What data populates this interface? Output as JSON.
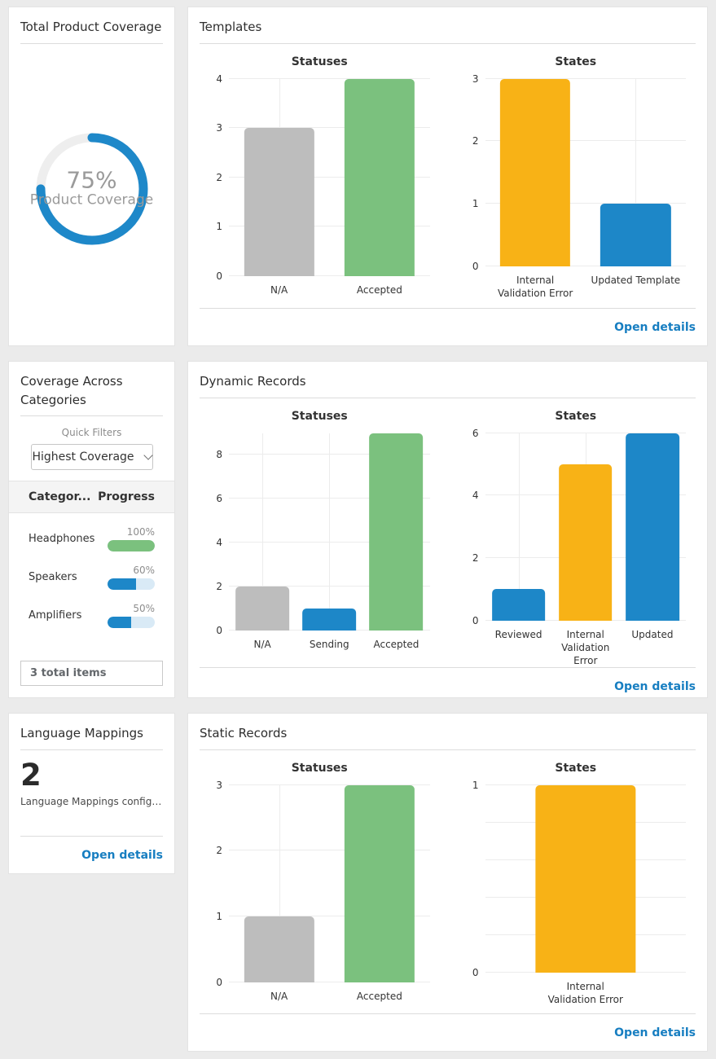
{
  "colors": {
    "accent_blue": "#1d87c8",
    "green": "#7bc17e",
    "orange": "#f8b216",
    "gray": "#bdbdbd",
    "link_blue": "#177ec1",
    "donut_track": "#eeeeee",
    "progress_track": "#d9eaf6"
  },
  "cards": {
    "total": {
      "title": "Total Product Coverage"
    },
    "templates": {
      "title": "Templates",
      "open_details": "Open details"
    },
    "categories": {
      "title": "Coverage Across Categories",
      "quick_filters_label": "Quick Filters",
      "dropdown_value": "Highest Coverage",
      "col_category": "Categor...",
      "col_progress": "Progress",
      "rows": [
        {
          "category": "Headphones",
          "percent": 100,
          "percent_label": "100%",
          "fill": "#7bc17e"
        },
        {
          "category": "Speakers",
          "percent": 60,
          "percent_label": "60%",
          "fill": "#1d87c8"
        },
        {
          "category": "Amplifiers",
          "percent": 50,
          "percent_label": "50%",
          "fill": "#1d87c8"
        }
      ],
      "footer": "3 total items"
    },
    "dynamic": {
      "title": "Dynamic Records",
      "open_details": "Open details"
    },
    "language": {
      "title": "Language Mappings",
      "count": "2",
      "subtitle": "Language Mappings configur...",
      "open_details": "Open details"
    },
    "static": {
      "title": "Static Records",
      "open_details": "Open details"
    }
  },
  "chart_data": [
    {
      "id": "product-coverage-donut",
      "type": "donut",
      "value": 75,
      "max": 100,
      "center_label": "75%",
      "center_sublabel": "Product Coverage",
      "color": "#1e88c9",
      "track_color": "#eeeeee"
    },
    {
      "id": "templates-statuses",
      "type": "bar",
      "title": "Statuses",
      "categories": [
        "N/A",
        "Accepted"
      ],
      "values": [
        3,
        4
      ],
      "colors": [
        "#bdbdbd",
        "#7bc17e"
      ],
      "ymax": 4,
      "yticks": [
        0,
        1,
        2,
        3,
        4
      ]
    },
    {
      "id": "templates-states",
      "type": "bar",
      "title": "States",
      "categories": [
        "Internal\nValidation Error",
        "Updated Template"
      ],
      "values": [
        3,
        1
      ],
      "colors": [
        "#f8b216",
        "#1d87c8"
      ],
      "ymax": 3,
      "yticks": [
        0,
        1,
        2,
        3
      ]
    },
    {
      "id": "dynamic-statuses",
      "type": "bar",
      "title": "Statuses",
      "categories": [
        "N/A",
        "Sending",
        "Accepted"
      ],
      "values": [
        2,
        1,
        9
      ],
      "colors": [
        "#bdbdbd",
        "#1d87c8",
        "#7bc17e"
      ],
      "ymax": 9,
      "yticks": [
        0,
        2,
        4,
        6,
        8
      ]
    },
    {
      "id": "dynamic-states",
      "type": "bar",
      "title": "States",
      "categories": [
        "Reviewed",
        "Internal\nValidation Error",
        "Updated"
      ],
      "values": [
        1,
        5,
        6
      ],
      "colors": [
        "#1d87c8",
        "#f8b216",
        "#1d87c8"
      ],
      "ymax": 6,
      "yticks": [
        0,
        2,
        4,
        6
      ]
    },
    {
      "id": "static-statuses",
      "type": "bar",
      "title": "Statuses",
      "categories": [
        "N/A",
        "Accepted"
      ],
      "values": [
        1,
        3
      ],
      "colors": [
        "#bdbdbd",
        "#7bc17e"
      ],
      "ymax": 3,
      "yticks": [
        0,
        1,
        2,
        3
      ]
    },
    {
      "id": "static-states",
      "type": "bar",
      "title": "States",
      "categories": [
        "Internal\nValidation Error"
      ],
      "values": [
        1
      ],
      "colors": [
        "#f8b216"
      ],
      "ymax": 1,
      "yticks": [
        0,
        1
      ],
      "minor_grid": [
        0.2,
        0.4,
        0.6,
        0.8
      ]
    }
  ]
}
